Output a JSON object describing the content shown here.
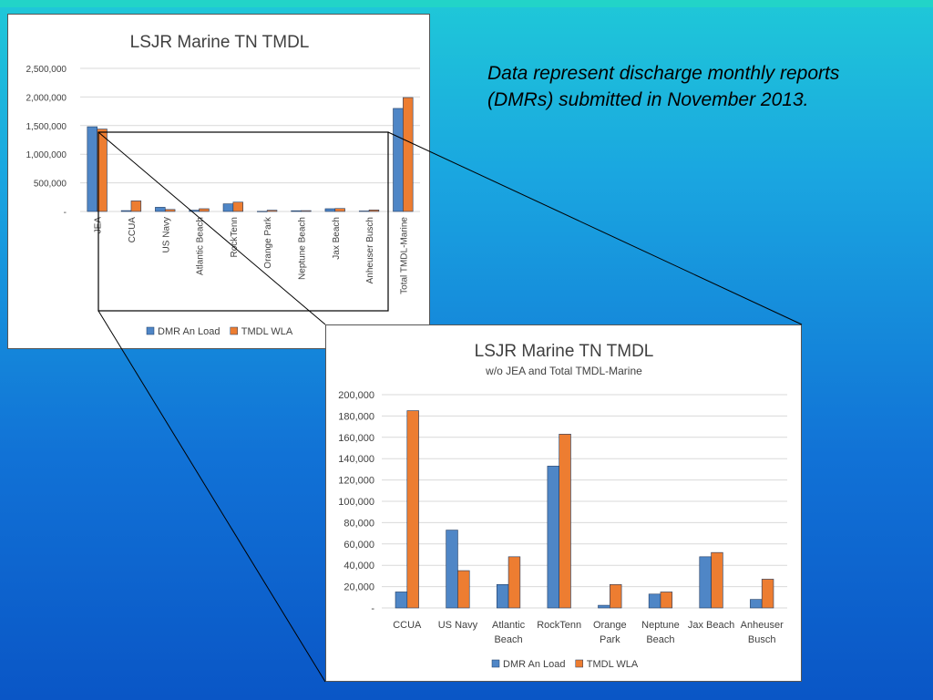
{
  "note": "Data represent discharge monthly reports (DMRs) submitted in November 2013.",
  "colors": {
    "dmr": "#4f86c6",
    "tmdl": "#ed7d31",
    "axis_text": "#404040",
    "grid": "#d9d9d9"
  },
  "chart_data": [
    {
      "type": "bar",
      "title": "LSJR Marine TN TMDL",
      "subtitle": "",
      "categories": [
        "JEA",
        "CCUA",
        "US Navy",
        "Atlantic Beach",
        "RockTenn",
        "Orange Park",
        "Neptune Beach",
        "Jax Beach",
        "Anheuser Busch",
        "Total TMDL-Marine"
      ],
      "series": [
        {
          "name": "DMR An Load",
          "values": [
            1480000,
            15000,
            73000,
            22000,
            133000,
            2500,
            13000,
            48000,
            8000,
            1800000
          ]
        },
        {
          "name": "TMDL WLA",
          "values": [
            1440000,
            185000,
            35000,
            48000,
            163000,
            22000,
            15000,
            52000,
            27000,
            1990000
          ]
        }
      ],
      "ylim": [
        0,
        2500000
      ],
      "yticks": [
        0,
        500000,
        1000000,
        1500000,
        2000000,
        2500000
      ],
      "ytick_labels": [
        "-",
        "500,000",
        "1,000,000",
        "1,500,000",
        "2,000,000",
        "2,500,000"
      ],
      "xlabel": "",
      "ylabel": "",
      "grid": true,
      "legend": "bottom"
    },
    {
      "type": "bar",
      "title": "LSJR Marine TN TMDL",
      "subtitle": "w/o JEA and Total TMDL-Marine",
      "categories": [
        "CCUA",
        "US Navy",
        "Atlantic Beach",
        "RockTenn",
        "Orange Park",
        "Neptune Beach",
        "Jax Beach",
        "Anheuser Busch"
      ],
      "category_lines": [
        [
          "CCUA"
        ],
        [
          "US Navy"
        ],
        [
          "Atlantic",
          "Beach"
        ],
        [
          "RockTenn"
        ],
        [
          "Orange",
          "Park"
        ],
        [
          "Neptune",
          "Beach"
        ],
        [
          "Jax Beach"
        ],
        [
          "Anheuser",
          "Busch"
        ]
      ],
      "series": [
        {
          "name": "DMR An Load",
          "values": [
            15000,
            73000,
            22000,
            133000,
            2500,
            13000,
            48000,
            8000
          ]
        },
        {
          "name": "TMDL WLA",
          "values": [
            185000,
            35000,
            48000,
            163000,
            22000,
            15000,
            52000,
            27000
          ]
        }
      ],
      "ylim": [
        0,
        200000
      ],
      "yticks": [
        0,
        20000,
        40000,
        60000,
        80000,
        100000,
        120000,
        140000,
        160000,
        180000,
        200000
      ],
      "ytick_labels": [
        "-",
        "20,000",
        "40,000",
        "60,000",
        "80,000",
        "100,000",
        "120,000",
        "140,000",
        "160,000",
        "180,000",
        "200,000"
      ],
      "xlabel": "",
      "ylabel": "",
      "grid": true,
      "legend": "bottom"
    }
  ]
}
